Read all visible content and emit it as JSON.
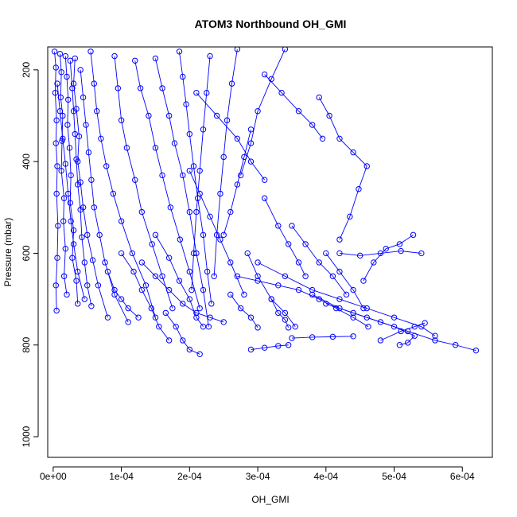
{
  "chart_data": {
    "type": "line",
    "title": "ATOM3 Northbound OH_GMI",
    "xlabel": "OH_GMI",
    "ylabel": "Pressure (mbar)",
    "xlim": [
      -8e-06,
      0.000644
    ],
    "ylim": [
      1045,
      150
    ],
    "y_reversed": true,
    "x_ticks": [
      0,
      0.0001,
      0.0002,
      0.0003,
      0.0004,
      0.0005,
      0.0006
    ],
    "x_tick_labels": [
      "0e+00",
      "1e-04",
      "2e-04",
      "3e-04",
      "4e-04",
      "5e-04",
      "6e-04"
    ],
    "y_ticks": [
      200,
      400,
      600,
      800,
      1000
    ],
    "y_tick_labels": [
      "200",
      "400",
      "600",
      "800",
      "1000"
    ],
    "series_color": "#0000ff",
    "marker": "open-circle",
    "grid": false,
    "series": [
      {
        "x": [
          2e-06,
          4e-06,
          3e-06,
          5e-06,
          4e-06,
          6e-06,
          5e-06,
          7e-06,
          6e-06,
          4e-06,
          5e-06
        ],
        "y": [
          160,
          195,
          250,
          310,
          360,
          410,
          470,
          540,
          610,
          670,
          725
        ]
      },
      {
        "x": [
          1e-05,
          1.2e-05,
          1.1e-05,
          1.4e-05,
          1.3e-05,
          1.2e-05,
          1.6e-05,
          1.5e-05,
          1.8e-05,
          1.6e-05,
          2e-05
        ],
        "y": [
          165,
          205,
          260,
          300,
          355,
          420,
          480,
          530,
          590,
          650,
          690
        ]
      },
      {
        "x": [
          1.8e-05,
          2e-05,
          2.2e-05,
          2.1e-05,
          2.4e-05,
          2.6e-05,
          2.5e-05,
          3e-05,
          2.8e-05,
          3.4e-05,
          3.6e-05
        ],
        "y": [
          170,
          215,
          265,
          320,
          370,
          430,
          490,
          550,
          610,
          660,
          710
        ]
      },
      {
        "x": [
          2.5e-05,
          2.8e-05,
          3e-05,
          3.2e-05,
          3.4e-05,
          3.6e-05,
          4e-05,
          4.2e-05,
          4.6e-05,
          5e-05,
          5.6e-05
        ],
        "y": [
          180,
          240,
          290,
          340,
          395,
          450,
          505,
          565,
          620,
          670,
          715
        ]
      },
      {
        "x": [
          3.2e-05,
          3e-05,
          3.4e-05,
          3.8e-05,
          3.6e-05,
          4e-05,
          4.4e-05,
          5e-05,
          5.8e-05,
          6.6e-05,
          8e-05
        ],
        "y": [
          175,
          230,
          285,
          345,
          400,
          445,
          500,
          560,
          615,
          670,
          740
        ]
      },
      {
        "x": [
          6e-06,
          1e-05,
          1.4e-05,
          1.8e-05,
          2.2e-05,
          2.6e-05,
          3e-05,
          3.6e-05,
          4.6e-05
        ],
        "y": [
          230,
          290,
          350,
          405,
          470,
          530,
          580,
          640,
          700
        ]
      },
      {
        "x": [
          4e-05,
          4.4e-05,
          4.8e-05,
          5.2e-05,
          5.6e-05,
          6e-05,
          6.8e-05,
          7.6e-05,
          9e-05,
          0.00011
        ],
        "y": [
          200,
          260,
          320,
          380,
          440,
          500,
          560,
          620,
          690,
          750
        ]
      },
      {
        "x": [
          5.5e-05,
          6e-05,
          6.4e-05,
          7e-05,
          7.8e-05,
          8.8e-05,
          0.0001,
          0.000116,
          0.000136,
          0.00015
        ],
        "y": [
          160,
          230,
          290,
          350,
          410,
          470,
          530,
          600,
          670,
          740
        ]
      },
      {
        "x": [
          9e-05,
          9.5e-05,
          0.0001,
          0.000108,
          0.00012,
          0.00013,
          0.000145,
          0.00016,
          0.000175
        ],
        "y": [
          170,
          240,
          310,
          370,
          440,
          510,
          580,
          650,
          720
        ]
      },
      {
        "x": [
          0.00012,
          0.000128,
          0.00014,
          0.00015,
          0.00016,
          0.000172,
          0.000186,
          0.0002,
          0.000215
        ],
        "y": [
          180,
          240,
          300,
          370,
          430,
          500,
          570,
          640,
          720
        ]
      },
      {
        "x": [
          0.00015,
          0.00016,
          0.00017,
          0.000178,
          0.00019,
          0.0002,
          0.00021,
          0.00022,
          0.000228
        ],
        "y": [
          175,
          240,
          300,
          360,
          430,
          510,
          600,
          680,
          760
        ]
      },
      {
        "x": [
          0.000185,
          0.00019,
          0.000195,
          0.0002,
          0.000206,
          0.000212,
          0.00022,
          0.000226,
          0.000232
        ],
        "y": [
          160,
          215,
          275,
          340,
          410,
          480,
          560,
          640,
          710
        ]
      },
      {
        "x": [
          0.00023,
          0.000225,
          0.00022,
          0.000215,
          0.00021,
          0.000206,
          0.000203
        ],
        "y": [
          170,
          250,
          330,
          420,
          510,
          600,
          680
        ]
      },
      {
        "x": [
          0.00027,
          0.000262,
          0.000255,
          0.00025,
          0.000245,
          0.00024,
          0.000236
        ],
        "y": [
          155,
          230,
          310,
          390,
          470,
          560,
          650
        ]
      },
      {
        "x": [
          0.0002,
          0.000215,
          0.00023,
          0.000245,
          0.00026,
          0.00028
        ],
        "y": [
          420,
          470,
          520,
          570,
          620,
          690
        ]
      },
      {
        "x": [
          0.00029,
          0.00028,
          0.00027,
          0.00026,
          0.00025
        ],
        "y": [
          330,
          390,
          450,
          510,
          560
        ]
      },
      {
        "x": [
          0.00034,
          0.00032,
          0.0003,
          0.00029,
          0.000275
        ],
        "y": [
          155,
          220,
          290,
          360,
          430
        ]
      },
      {
        "x": [
          0.00015,
          0.00017,
          0.000185,
          0.0002,
          0.00021,
          0.00022
        ],
        "y": [
          560,
          610,
          660,
          700,
          740,
          760
        ]
      },
      {
        "x": [
          0.0001,
          0.000118,
          0.00013,
          0.000144,
          0.000155,
          0.00017
        ],
        "y": [
          600,
          640,
          680,
          720,
          760,
          790
        ]
      },
      {
        "x": [
          0.000165,
          0.00018,
          0.00019,
          0.0002,
          0.000215
        ],
        "y": [
          730,
          760,
          790,
          810,
          820
        ]
      },
      {
        "x": [
          0.00013,
          0.00015,
          0.00017,
          0.00019,
          0.00021,
          0.00023,
          0.00025
        ],
        "y": [
          620,
          650,
          680,
          710,
          730,
          740,
          750
        ]
      },
      {
        "x": [
          8e-05,
          9e-05,
          0.0001,
          0.00011,
          0.000125
        ],
        "y": [
          640,
          680,
          700,
          720,
          740
        ]
      },
      {
        "x": [
          0.000285,
          0.0003,
          0.00032,
          0.00034,
          0.000355
        ],
        "y": [
          600,
          650,
          700,
          730,
          760
        ]
      },
      {
        "x": [
          0.00031,
          0.00033,
          0.000345,
          0.00036,
          0.00037
        ],
        "y": [
          480,
          540,
          580,
          620,
          650
        ]
      },
      {
        "x": [
          0.00039,
          0.000405,
          0.00042,
          0.00044,
          0.00046,
          0.000448,
          0.000435,
          0.00042
        ],
        "y": [
          260,
          300,
          350,
          380,
          410,
          460,
          520,
          570
        ]
      },
      {
        "x": [
          0.00031,
          0.000335,
          0.00036,
          0.00038,
          0.000395
        ],
        "y": [
          210,
          250,
          290,
          320,
          350
        ]
      },
      {
        "x": [
          0.0004,
          0.00042,
          0.00044,
          0.000455
        ],
        "y": [
          600,
          640,
          680,
          720
        ]
      },
      {
        "x": [
          0.00035,
          0.00037,
          0.00039,
          0.00041,
          0.00043
        ],
        "y": [
          540,
          580,
          620,
          650,
          690
        ]
      },
      {
        "x": [
          0.00027,
          0.0003,
          0.00033,
          0.00036,
          0.00039,
          0.000415,
          0.00044,
          0.000462
        ],
        "y": [
          650,
          660,
          670,
          680,
          700,
          720,
          740,
          760
        ]
      },
      {
        "x": [
          0.000455,
          0.00047,
          0.000488,
          0.000508,
          0.000528
        ],
        "y": [
          660,
          620,
          590,
          580,
          560
        ]
      },
      {
        "x": [
          0.00042,
          0.00045,
          0.00048,
          0.00051,
          0.00054
        ],
        "y": [
          600,
          605,
          600,
          595,
          600
        ]
      },
      {
        "x": [
          0.00038,
          0.00042,
          0.00046,
          0.0005,
          0.00053,
          0.00052,
          0.000508
        ],
        "y": [
          690,
          720,
          740,
          760,
          780,
          795,
          800
        ]
      },
      {
        "x": [
          0.0003,
          0.00034,
          0.00038,
          0.00042,
          0.00046,
          0.0005,
          0.00054,
          0.00056
        ],
        "y": [
          620,
          650,
          680,
          700,
          720,
          740,
          760,
          780
        ]
      },
      {
        "x": [
          0.0004,
          0.00044,
          0.00048,
          0.00052,
          0.00056,
          0.00059,
          0.00062
        ],
        "y": [
          710,
          730,
          750,
          770,
          790,
          800,
          812
        ]
      },
      {
        "x": [
          0.00048,
          0.00051,
          0.00053,
          0.000545
        ],
        "y": [
          790,
          770,
          760,
          752
        ]
      },
      {
        "x": [
          0.00029,
          0.00031,
          0.00033,
          0.000345
        ],
        "y": [
          810,
          806,
          802,
          800
        ]
      },
      {
        "x": [
          0.00035,
          0.00038,
          0.00041,
          0.00044
        ],
        "y": [
          785,
          783,
          782,
          781
        ]
      },
      {
        "x": [
          0.00026,
          0.000275,
          0.00029,
          0.0003
        ],
        "y": [
          690,
          720,
          740,
          762
        ]
      },
      {
        "x": [
          0.00032,
          0.00033,
          0.00034,
          0.000345
        ],
        "y": [
          700,
          730,
          745,
          762
        ]
      },
      {
        "x": [
          0.00021,
          0.00024,
          0.00027,
          0.00029,
          0.00031
        ],
        "y": [
          250,
          300,
          350,
          400,
          440
        ]
      }
    ]
  }
}
